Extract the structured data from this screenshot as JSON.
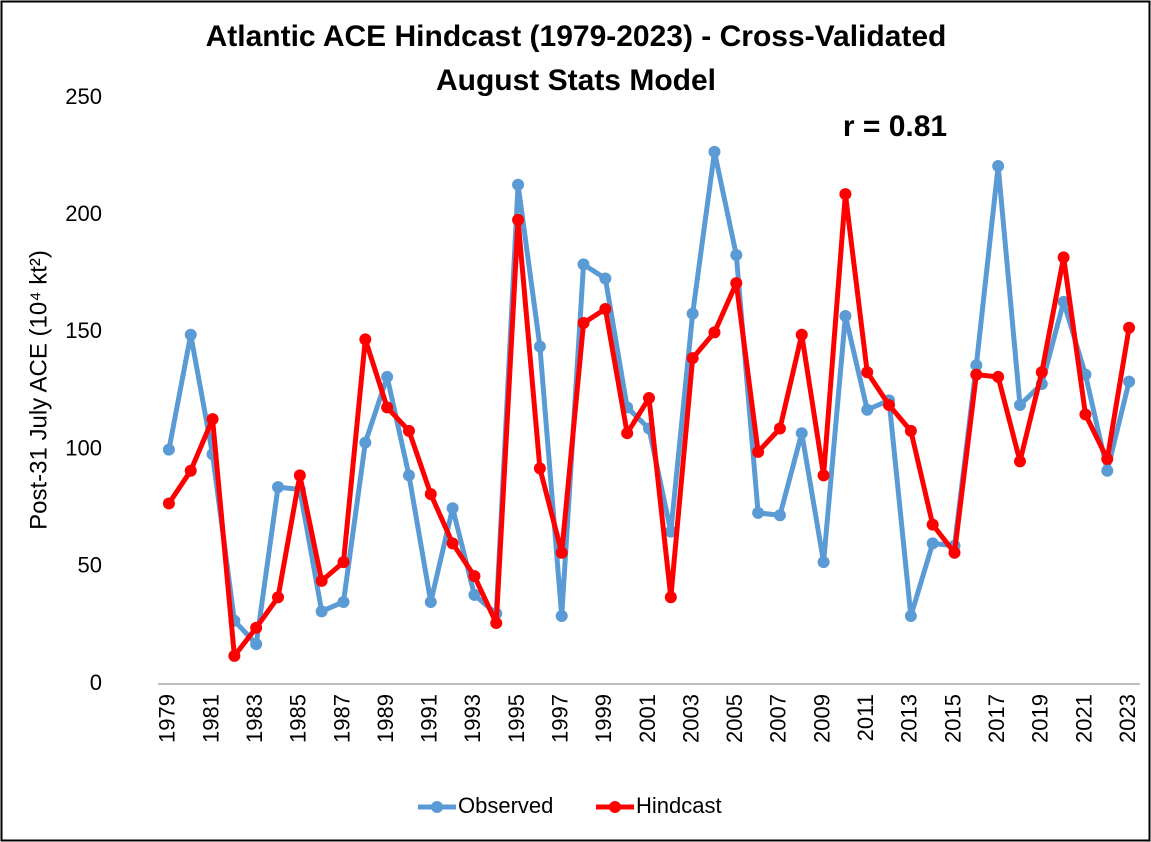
{
  "chart_data": {
    "type": "line",
    "title": [
      "Atlantic ACE Hindcast (1979-2023) - Cross-Validated",
      "August Stats Model"
    ],
    "y_label": "Post-31 July ACE (10⁴ kt²)",
    "annotation": "r = 0.81",
    "x": [
      1979,
      1980,
      1981,
      1982,
      1983,
      1984,
      1985,
      1986,
      1987,
      1988,
      1989,
      1990,
      1991,
      1992,
      1993,
      1994,
      1995,
      1996,
      1997,
      1998,
      1999,
      2000,
      2001,
      2002,
      2003,
      2004,
      2005,
      2006,
      2007,
      2008,
      2009,
      2010,
      2011,
      2012,
      2013,
      2014,
      2015,
      2016,
      2017,
      2018,
      2019,
      2020,
      2021,
      2022,
      2023
    ],
    "xlim": [
      1978.5,
      2023.5
    ],
    "xticks": [
      1979,
      1981,
      1983,
      1985,
      1987,
      1989,
      1991,
      1993,
      1995,
      1997,
      1999,
      2001,
      2003,
      2005,
      2007,
      2009,
      2011,
      2013,
      2015,
      2017,
      2019,
      2021,
      2023
    ],
    "ylim": [
      0,
      250
    ],
    "yticks": [
      0,
      50,
      100,
      150,
      200,
      250
    ],
    "grid": false,
    "legend": "bottom",
    "series": [
      {
        "name": "Observed",
        "color": "#5b9bd5",
        "values": [
          100,
          149,
          98,
          27,
          17,
          84,
          83,
          31,
          35,
          103,
          131,
          89,
          35,
          75,
          38,
          30,
          213,
          144,
          29,
          179,
          173,
          118,
          109,
          65,
          158,
          227,
          183,
          73,
          72,
          107,
          52,
          157,
          117,
          121,
          29,
          60,
          59,
          136,
          221,
          119,
          128,
          163,
          132,
          91,
          129
        ]
      },
      {
        "name": "Hindcast",
        "color": "#ff0000",
        "values": [
          77,
          91,
          113,
          12,
          24,
          37,
          89,
          44,
          52,
          147,
          118,
          108,
          81,
          60,
          46,
          26,
          198,
          92,
          56,
          154,
          160,
          107,
          122,
          37,
          139,
          150,
          171,
          99,
          109,
          149,
          89,
          209,
          133,
          119,
          108,
          68,
          56,
          132,
          131,
          95,
          133,
          182,
          115,
          96,
          152
        ]
      }
    ]
  }
}
